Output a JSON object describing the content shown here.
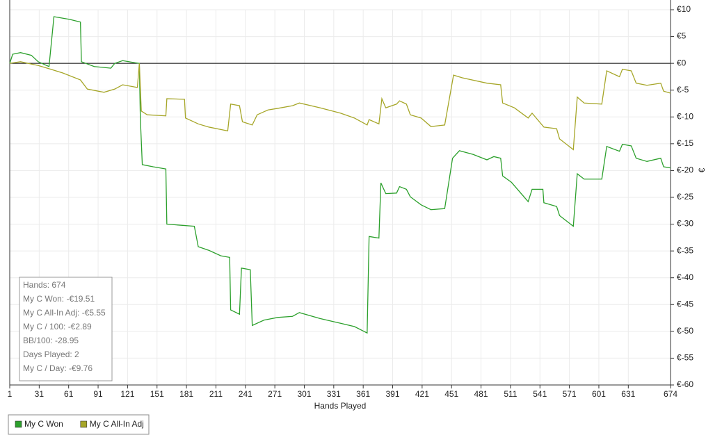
{
  "chart_data": {
    "type": "line",
    "x_label": "Hands Played",
    "y_label": "€",
    "xlim": [
      1,
      674
    ],
    "ylim": [
      -60,
      10
    ],
    "xticks": [
      1,
      31,
      61,
      91,
      121,
      151,
      181,
      211,
      241,
      271,
      301,
      331,
      361,
      391,
      421,
      451,
      481,
      511,
      541,
      571,
      601,
      631,
      674
    ],
    "yticks": [
      {
        "value": 10,
        "label": "€10"
      },
      {
        "value": 5,
        "label": "€5"
      },
      {
        "value": 0,
        "label": "€0"
      },
      {
        "value": -5,
        "label": "€-5"
      },
      {
        "value": -10,
        "label": "€-10"
      },
      {
        "value": -15,
        "label": "€-15"
      },
      {
        "value": -20,
        "label": "€-20"
      },
      {
        "value": -25,
        "label": "€-25"
      },
      {
        "value": -30,
        "label": "€-30"
      },
      {
        "value": -35,
        "label": "€-35"
      },
      {
        "value": -40,
        "label": "€-40"
      },
      {
        "value": -45,
        "label": "€-45"
      },
      {
        "value": -50,
        "label": "€-50"
      },
      {
        "value": -55,
        "label": "€-55"
      },
      {
        "value": -60,
        "label": "€-60"
      }
    ],
    "grid": true,
    "legend": "bottom-left",
    "stats": [
      "Hands: 674",
      "My C Won: -€19.51",
      "My C All-In Adj: -€5.55",
      "My C / 100: -€2.89",
      "BB/100: -28.95",
      "Days Played: 2",
      "My C / Day: -€9.76"
    ],
    "series": [
      {
        "name": "My C Won",
        "color": "#2ca02c",
        "x": [
          1,
          4,
          12,
          23,
          30,
          41,
          46,
          62,
          73,
          74,
          87,
          104,
          108,
          116,
          129,
          133,
          134,
          136,
          147,
          160,
          161,
          189,
          193,
          204,
          216,
          225,
          226,
          235,
          237,
          246,
          248,
          260,
          274,
          289,
          296,
          317,
          338,
          352,
          365,
          367,
          377,
          379,
          384,
          395,
          398,
          405,
          409,
          420,
          430,
          444,
          452,
          459,
          473,
          487,
          494,
          501,
          503,
          512,
          529,
          533,
          544,
          545,
          558,
          561,
          575,
          579,
          586,
          604,
          609,
          622,
          625,
          634,
          639,
          650,
          664,
          667,
          674
        ],
        "values": [
          0,
          1.7,
          2,
          1.5,
          0.3,
          -0.6,
          8.7,
          8.2,
          7.7,
          0.3,
          -0.6,
          -0.9,
          0,
          0.5,
          0.1,
          0,
          -10.2,
          -18.9,
          -19.3,
          -19.7,
          -30,
          -30.4,
          -34.2,
          -34.9,
          -35.9,
          -36.2,
          -46,
          -46.8,
          -38.2,
          -38.5,
          -48.9,
          -47.9,
          -47.4,
          -47.2,
          -46.5,
          -47.6,
          -48.5,
          -49.1,
          -50.3,
          -32.3,
          -32.6,
          -22.3,
          -24.3,
          -24.2,
          -23,
          -23.5,
          -24.9,
          -26.4,
          -27.3,
          -27.1,
          -17.7,
          -16.3,
          -17,
          -18,
          -17.4,
          -17.7,
          -21,
          -22.2,
          -25.8,
          -23.5,
          -23.5,
          -26,
          -26.7,
          -28.4,
          -30.4,
          -20.6,
          -21.6,
          -21.6,
          -15.5,
          -16.4,
          -15.1,
          -15.4,
          -17.7,
          -18.3,
          -17.7,
          -19.3,
          -19.51
        ]
      },
      {
        "name": "My C All-In Adj",
        "color": "#a6a628",
        "x": [
          1,
          12,
          30,
          41,
          55,
          73,
          80,
          97,
          108,
          116,
          131,
          133,
          135,
          141,
          160,
          161,
          179,
          180,
          193,
          204,
          223,
          226,
          235,
          238,
          248,
          253,
          264,
          274,
          289,
          296,
          317,
          338,
          352,
          365,
          367,
          377,
          380,
          384,
          395,
          398,
          405,
          409,
          420,
          430,
          444,
          453,
          462,
          487,
          501,
          503,
          515,
          529,
          533,
          545,
          558,
          561,
          575,
          579,
          586,
          604,
          609,
          622,
          625,
          634,
          639,
          650,
          664,
          667,
          674
        ],
        "values": [
          0,
          0.3,
          -0.4,
          -1,
          -1.8,
          -3.1,
          -4.8,
          -5.4,
          -4.8,
          -4,
          -4.5,
          0,
          -8.9,
          -9.6,
          -9.8,
          -6.6,
          -6.7,
          -10.2,
          -11.3,
          -11.9,
          -12.6,
          -7.6,
          -7.9,
          -10.9,
          -11.5,
          -9.6,
          -8.7,
          -8.4,
          -7.9,
          -7.4,
          -8.3,
          -9.3,
          -10.2,
          -11.5,
          -10.5,
          -11.3,
          -6.6,
          -8.3,
          -7.6,
          -7,
          -7.6,
          -9.6,
          -10.2,
          -11.8,
          -11.5,
          -2.2,
          -2.7,
          -3.7,
          -4,
          -7.4,
          -8.3,
          -10.2,
          -9.3,
          -11.9,
          -12.2,
          -14.1,
          -16.1,
          -6.3,
          -7.4,
          -7.6,
          -1.4,
          -2.5,
          -1.1,
          -1.4,
          -3.7,
          -4.1,
          -3.7,
          -5.2,
          -5.55
        ]
      }
    ]
  }
}
